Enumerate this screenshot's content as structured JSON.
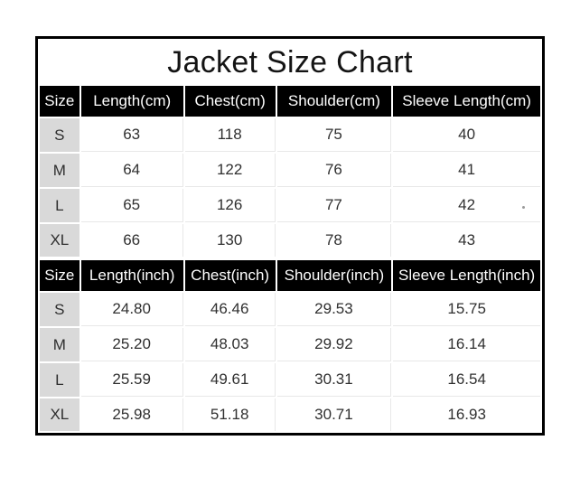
{
  "title": "Jacket Size Chart",
  "colors": {
    "border": "#000000",
    "header_bg": "#000000",
    "header_text": "#ffffff",
    "size_cell_bg": "#d9d9d9",
    "divider": "#e8e8e8",
    "text": "#303030"
  },
  "chart_data": [
    {
      "type": "table",
      "unit": "cm",
      "columns": [
        "Size",
        "Length(cm)",
        "Chest(cm)",
        "Shoulder(cm)",
        "Sleeve Length(cm)"
      ],
      "rows": [
        [
          "S",
          "63",
          "118",
          "75",
          "40"
        ],
        [
          "M",
          "64",
          "122",
          "76",
          "41"
        ],
        [
          "L",
          "65",
          "126",
          "77",
          "42"
        ],
        [
          "XL",
          "66",
          "130",
          "78",
          "43"
        ]
      ]
    },
    {
      "type": "table",
      "unit": "inch",
      "columns": [
        "Size",
        "Length(inch)",
        "Chest(inch)",
        "Shoulder(inch)",
        "Sleeve Length(inch)"
      ],
      "rows": [
        [
          "S",
          "24.80",
          "46.46",
          "29.53",
          "15.75"
        ],
        [
          "M",
          "25.20",
          "48.03",
          "29.92",
          "16.14"
        ],
        [
          "L",
          "25.59",
          "49.61",
          "30.31",
          "16.54"
        ],
        [
          "XL",
          "25.98",
          "51.18",
          "30.71",
          "16.93"
        ]
      ]
    }
  ]
}
